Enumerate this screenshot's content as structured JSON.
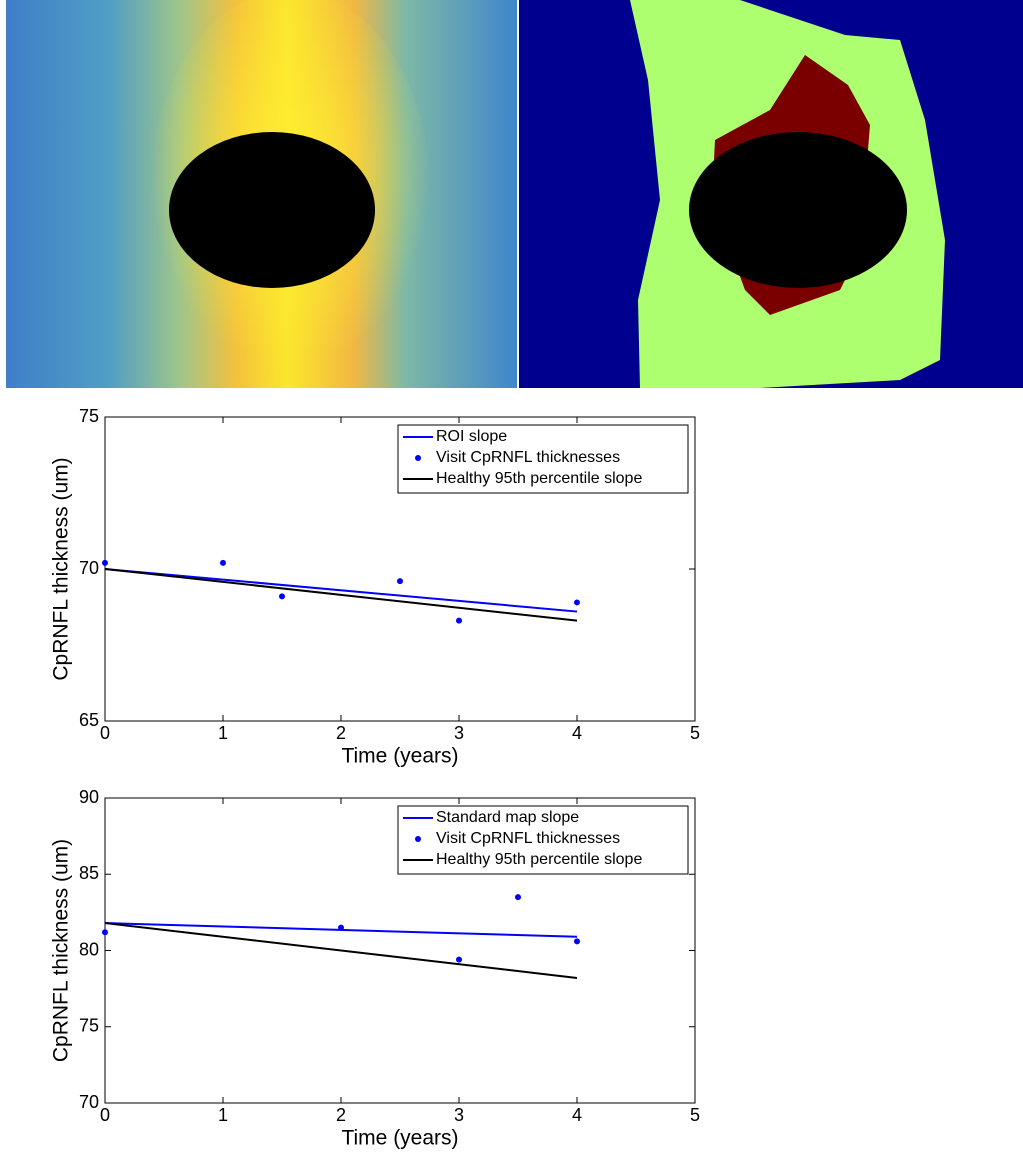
{
  "chart_data": [
    {
      "type": "line",
      "ylabel": "CpRNFL thickness (um)",
      "xlabel": "Time (years)",
      "xlim": [
        0,
        5
      ],
      "ylim": [
        65,
        75
      ],
      "xticks": [
        0,
        1,
        2,
        3,
        4,
        5
      ],
      "yticks": [
        65,
        70,
        75
      ],
      "legend": "upper right",
      "series": [
        {
          "name": "ROI slope",
          "color": "#0000ff",
          "mode": "line",
          "x": [
            0,
            4
          ],
          "values": [
            70,
            68.6
          ]
        },
        {
          "name": "Visit CpRNFL thicknesses",
          "color": "#0000ff",
          "mode": "markers",
          "x": [
            0,
            1,
            1.5,
            2.5,
            3,
            4
          ],
          "values": [
            70.2,
            70.2,
            69.1,
            69.6,
            68.3,
            68.9
          ]
        },
        {
          "name": "Healthy 95th percentile slope",
          "color": "#000000",
          "mode": "line",
          "x": [
            0,
            4
          ],
          "values": [
            70,
            68.3
          ]
        }
      ]
    },
    {
      "type": "line",
      "ylabel": "CpRNFL thickness (um)",
      "xlabel": "Time (years)",
      "xlim": [
        0,
        5
      ],
      "ylim": [
        70,
        90
      ],
      "xticks": [
        0,
        1,
        2,
        3,
        4,
        5
      ],
      "yticks": [
        70,
        75,
        80,
        85,
        90
      ],
      "legend": "upper right",
      "series": [
        {
          "name": "Standard map slope",
          "color": "#0000ff",
          "mode": "line",
          "x": [
            0,
            4
          ],
          "values": [
            81.8,
            80.9
          ]
        },
        {
          "name": "Visit CpRNFL thicknesses",
          "color": "#0000ff",
          "mode": "markers",
          "x": [
            0,
            2,
            3,
            3.5,
            4
          ],
          "values": [
            81.2,
            81.5,
            79.4,
            83.5,
            80.6
          ]
        },
        {
          "name": "Healthy 95th percentile slope",
          "color": "#000000",
          "mode": "line",
          "x": [
            0,
            4
          ],
          "values": [
            81.8,
            78.2
          ]
        }
      ]
    }
  ]
}
